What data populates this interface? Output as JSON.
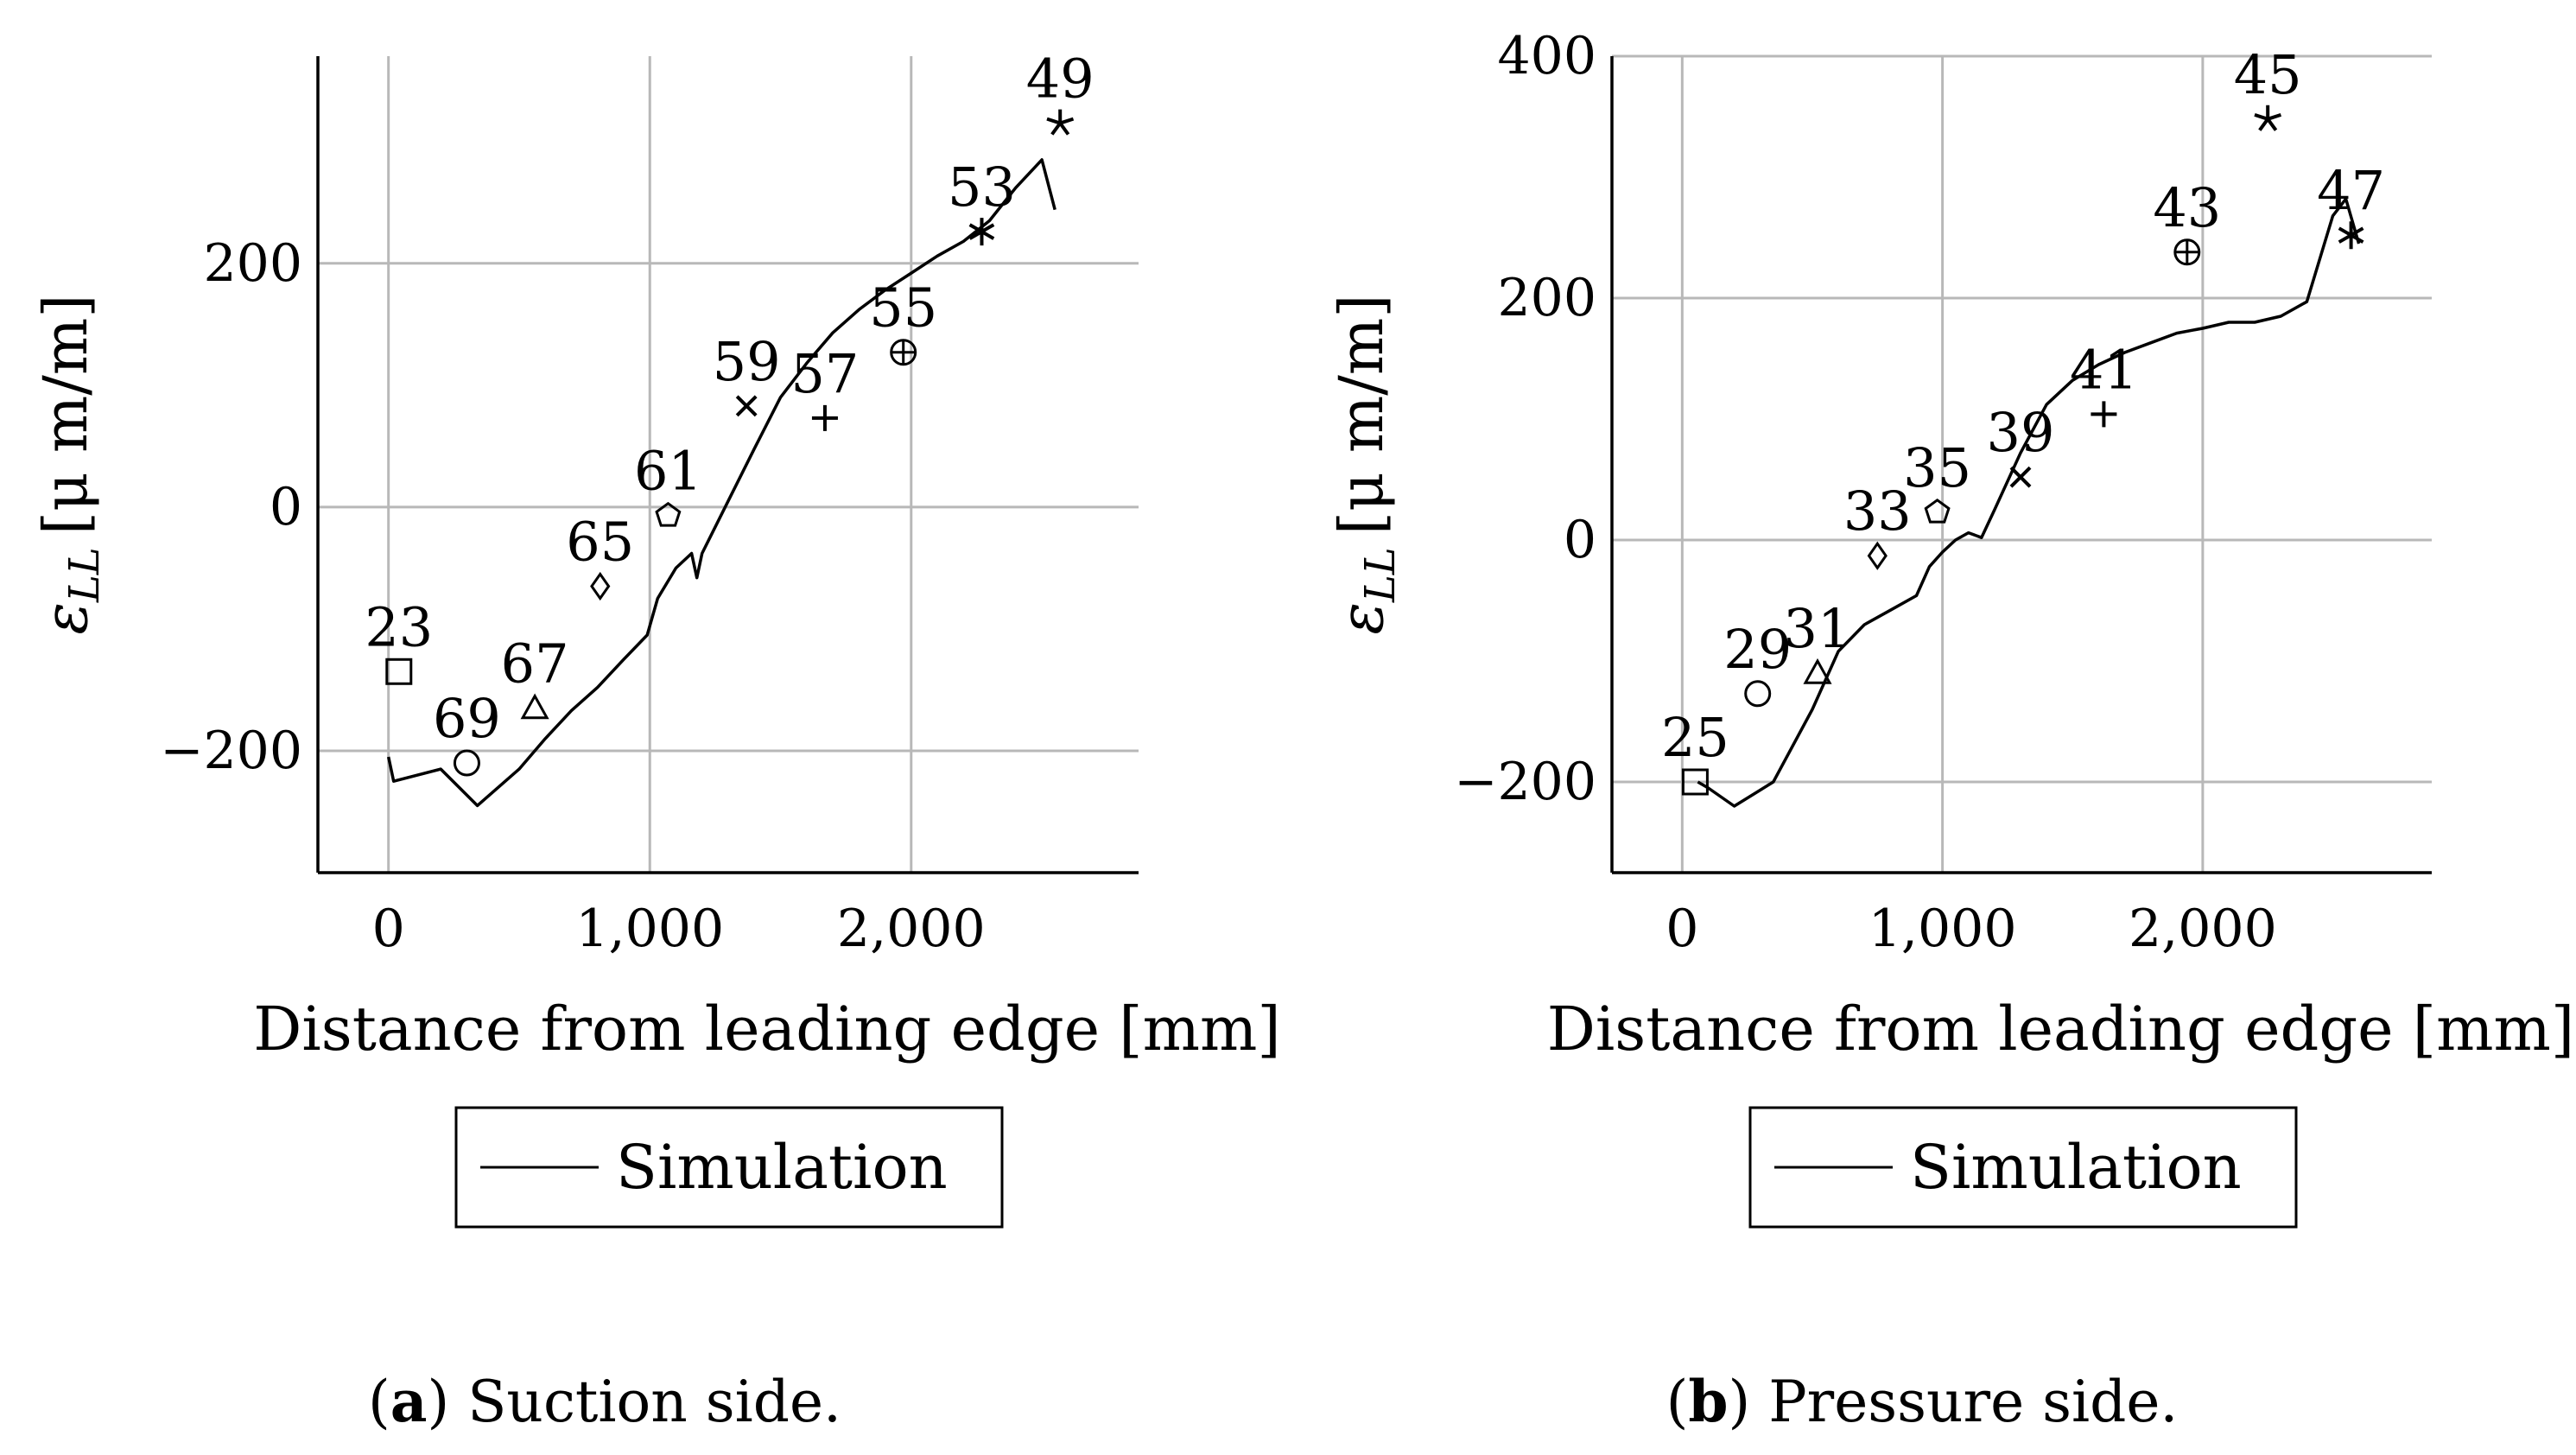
{
  "chart_data": [
    {
      "type": "scatter",
      "caption_letter": "a",
      "caption_text": "Suction side.",
      "xlabel": "Distance from leading edge [mm]",
      "ylabel_main": "ε",
      "ylabel_sub": "LL",
      "ylabel_rest": "[μ m/m]",
      "xlim": [
        -270,
        2870
      ],
      "ylim": [
        -300,
        370
      ],
      "xticks": [
        0,
        1000,
        2000
      ],
      "xtick_labels": [
        "0",
        "1,000",
        "2,000"
      ],
      "yticks": [
        -200,
        0,
        200
      ],
      "ytick_labels": [
        "−200",
        "0",
        "200"
      ],
      "grid": true,
      "legend": {
        "label": "Simulation",
        "position": "bottom"
      },
      "simulation": {
        "x": [
          0,
          20,
          200,
          340,
          500,
          600,
          700,
          800,
          900,
          990,
          1030,
          1100,
          1160,
          1180,
          1200,
          1300,
          1400,
          1500,
          1600,
          1700,
          1800,
          1900,
          2000,
          2100,
          2200,
          2300,
          2400,
          2500,
          2550
        ],
        "y": [
          -205,
          -225,
          -215,
          -245,
          -215,
          -190,
          -167,
          -148,
          -125,
          -105,
          -75,
          -50,
          -38,
          -58,
          -38,
          5,
          48,
          90,
          118,
          143,
          162,
          178,
          192,
          206,
          218,
          235,
          262,
          285,
          244
        ]
      },
      "measurements": [
        {
          "label": "23",
          "x": 40,
          "y": -135,
          "marker": "square"
        },
        {
          "label": "69",
          "x": 300,
          "y": -210,
          "marker": "circle"
        },
        {
          "label": "67",
          "x": 560,
          "y": -165,
          "marker": "triangle"
        },
        {
          "label": "65",
          "x": 810,
          "y": -65,
          "marker": "diamond"
        },
        {
          "label": "61",
          "x": 1070,
          "y": -7,
          "marker": "pentagon"
        },
        {
          "label": "59",
          "x": 1370,
          "y": 83,
          "marker": "cross"
        },
        {
          "label": "57",
          "x": 1670,
          "y": 73,
          "marker": "plus"
        },
        {
          "label": "55",
          "x": 1970,
          "y": 127,
          "marker": "oplus"
        },
        {
          "label": "53",
          "x": 2270,
          "y": 226,
          "marker": "star6"
        },
        {
          "label": "49",
          "x": 2570,
          "y": 315,
          "marker": "star5"
        }
      ]
    },
    {
      "type": "scatter",
      "caption_letter": "b",
      "caption_text": "Pressure side.",
      "xlabel": "Distance from leading edge [mm]",
      "ylabel_main": "ε",
      "ylabel_sub": "LL",
      "ylabel_rest": "[μ m/m]",
      "xlim": [
        -270,
        2880
      ],
      "ylim": [
        -275,
        400
      ],
      "xticks": [
        0,
        1000,
        2000
      ],
      "xtick_labels": [
        "0",
        "1,000",
        "2,000"
      ],
      "yticks": [
        -200,
        0,
        200,
        400
      ],
      "ytick_labels": [
        "−200",
        "0",
        "200",
        "400"
      ],
      "grid": true,
      "legend": {
        "label": "Simulation",
        "position": "bottom"
      },
      "simulation": {
        "x": [
          60,
          100,
          200,
          350,
          500,
          600,
          700,
          800,
          900,
          950,
          1000,
          1050,
          1100,
          1150,
          1200,
          1300,
          1400,
          1500,
          1600,
          1700,
          1800,
          1900,
          2000,
          2100,
          2200,
          2300,
          2400,
          2500,
          2550,
          2600
        ],
        "y": [
          -200,
          -205,
          -220,
          -200,
          -140,
          -92,
          -70,
          -58,
          -46,
          -22,
          -10,
          0,
          6,
          2,
          25,
          72,
          112,
          132,
          145,
          155,
          163,
          171,
          175,
          180,
          180,
          185,
          197,
          268,
          282,
          245
        ]
      },
      "measurements": [
        {
          "label": "25",
          "x": 50,
          "y": -200,
          "marker": "square"
        },
        {
          "label": "29",
          "x": 290,
          "y": -127,
          "marker": "circle"
        },
        {
          "label": "31",
          "x": 520,
          "y": -110,
          "marker": "triangle"
        },
        {
          "label": "33",
          "x": 750,
          "y": -13,
          "marker": "diamond"
        },
        {
          "label": "35",
          "x": 980,
          "y": 23,
          "marker": "pentagon"
        },
        {
          "label": "39",
          "x": 1300,
          "y": 52,
          "marker": "cross"
        },
        {
          "label": "41",
          "x": 1620,
          "y": 104,
          "marker": "plus"
        },
        {
          "label": "43",
          "x": 1940,
          "y": 238,
          "marker": "oplus"
        },
        {
          "label": "45",
          "x": 2250,
          "y": 348,
          "marker": "star5"
        },
        {
          "label": "47",
          "x": 2570,
          "y": 252,
          "marker": "star6"
        }
      ]
    }
  ]
}
